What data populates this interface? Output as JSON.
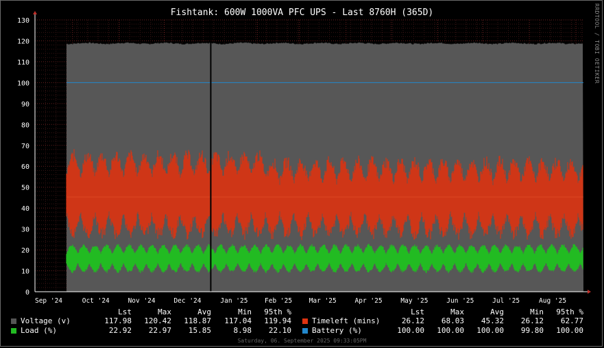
{
  "title": "Fishtank: 600W 1000VA PFC UPS - Last 8760H (365D)",
  "side_label": "RRDTOOL / TOBI OETIKER",
  "footer": "Saturday, 06. September 2025 09:33:05PM",
  "legend": {
    "headers": [
      "Lst",
      "Max",
      "Avg",
      "Min",
      "95th %"
    ],
    "rows": [
      {
        "name": "Voltage (v)",
        "color": "#555555",
        "values": [
          "117.98",
          "120.42",
          "118.87",
          "117.04",
          "119.94"
        ]
      },
      {
        "name": "Load (%)",
        "color": "#22bb22",
        "values": [
          "22.92",
          "22.97",
          "15.85",
          "8.98",
          "22.10"
        ]
      },
      {
        "name": "Timeleft (mins)",
        "color": "#dd3311",
        "values": [
          "26.12",
          "68.03",
          "45.32",
          "26.12",
          "62.77"
        ]
      },
      {
        "name": "Battery (%)",
        "color": "#2288cc",
        "values": [
          "100.00",
          "100.00",
          "100.00",
          "99.80",
          "100.00"
        ]
      }
    ]
  },
  "chart_data": {
    "type": "area",
    "title": "Fishtank: 600W 1000VA PFC UPS - Last 8760H (365D)",
    "x_tick_labels": [
      "Sep '24",
      "Oct '24",
      "Nov '24",
      "Dec '24",
      "Jan '25",
      "Feb '25",
      "Mar '25",
      "Apr '25",
      "May '25",
      "Jun '25",
      "Jul '25",
      "Aug '25"
    ],
    "y_ticks": [
      0,
      10,
      20,
      30,
      40,
      50,
      60,
      70,
      80,
      90,
      100,
      110,
      120,
      130
    ],
    "ylim": [
      0,
      130
    ],
    "x_range": [
      "2024-09-06",
      "2025-09-06"
    ],
    "data_start": "2024-09-27",
    "marker": "2025-01-01",
    "grid": true,
    "series": [
      {
        "name": "Voltage (v)",
        "color": "#555555",
        "style": "area",
        "typical": 118.9,
        "range": [
          117.0,
          120.4
        ]
      },
      {
        "name": "Timeleft (mins)",
        "color": "#dd3311",
        "style": "band",
        "center": 45.3,
        "range": [
          26.1,
          68.0
        ]
      },
      {
        "name": "Load (%)",
        "color": "#22bb22",
        "style": "band",
        "center": 15.9,
        "range": [
          9.0,
          23.0
        ]
      },
      {
        "name": "Battery (%)",
        "color": "#2288cc",
        "style": "line",
        "typical": 100.0,
        "range": [
          99.8,
          100.0
        ]
      }
    ]
  }
}
